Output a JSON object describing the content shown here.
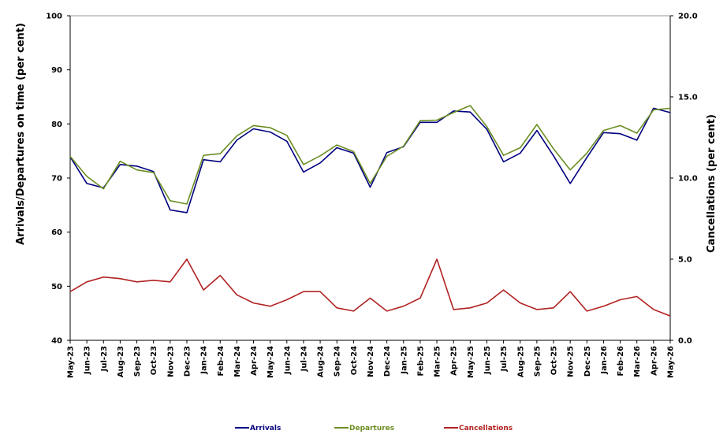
{
  "chart_data": {
    "type": "line",
    "categories": [
      "May-23",
      "Jun-23",
      "Jul-23",
      "Aug-23",
      "Sep-23",
      "Oct-23",
      "Nov-23",
      "Dec-23",
      "Jan-24",
      "Feb-24",
      "Mar-24",
      "Apr-24",
      "May-24",
      "Jun-24",
      "Jul-24",
      "Aug-24",
      "Sep-24",
      "Oct-24",
      "Nov-24",
      "Dec-24",
      "Jan-25",
      "Feb-25",
      "Mar-25",
      "Apr-25",
      "May-25",
      "Jun-25",
      "Jul-25",
      "Aug-25",
      "Sep-25",
      "Oct-25",
      "Nov-25",
      "Dec-25",
      "Jan-26",
      "Feb-26",
      "Mar-26",
      "Apr-26",
      "May-26"
    ],
    "ylabel_left": "Arrivals/Departures on time (per cent)",
    "ylabel_right": "Cancellations (per cent)",
    "ylim_left": [
      40,
      100
    ],
    "ylim_right": [
      0,
      20
    ],
    "yticks_left": [
      "40",
      "50",
      "60",
      "70",
      "80",
      "90",
      "100"
    ],
    "yticks_right": [
      "0.0",
      "5.0",
      "10.0",
      "15.0",
      "20.0"
    ],
    "gridlines": "top only",
    "legend_position": "bottom",
    "series": [
      {
        "name": "Arrivals",
        "axis": "left",
        "color": "#000080",
        "values": [
          73.9,
          69.0,
          68.2,
          72.5,
          72.2,
          71.2,
          64.1,
          63.6,
          73.4,
          73.0,
          77.0,
          79.1,
          78.5,
          76.8,
          71.1,
          72.8,
          75.6,
          74.6,
          68.3,
          74.7,
          75.8,
          80.3,
          80.3,
          82.4,
          82.2,
          79.0,
          73.0,
          74.6,
          78.8,
          74.1,
          69.0,
          73.8,
          78.4,
          78.2,
          77.0,
          82.9,
          82.1
        ]
      },
      {
        "name": "Departures",
        "axis": "left",
        "color": "#6B8E23",
        "values": [
          74.0,
          70.3,
          68.0,
          73.1,
          71.5,
          71.0,
          65.8,
          65.2,
          74.2,
          74.5,
          77.8,
          79.7,
          79.3,
          77.9,
          72.5,
          74.1,
          76.1,
          74.9,
          69.0,
          74.0,
          75.9,
          80.6,
          80.7,
          82.1,
          83.4,
          79.5,
          74.2,
          75.6,
          79.9,
          75.4,
          71.5,
          74.6,
          78.8,
          79.7,
          78.3,
          82.6,
          82.9
        ]
      },
      {
        "name": "Cancellations",
        "axis": "right",
        "color": "#B22222",
        "values": [
          3.0,
          3.6,
          3.9,
          3.8,
          3.6,
          3.7,
          3.6,
          5.0,
          3.1,
          4.0,
          2.8,
          2.3,
          2.1,
          2.5,
          3.0,
          3.0,
          2.0,
          1.8,
          2.6,
          1.8,
          2.1,
          2.6,
          5.0,
          1.9,
          2.0,
          2.3,
          3.1,
          2.3,
          1.9,
          2.0,
          3.0,
          1.8,
          2.1,
          2.5,
          2.7,
          1.9,
          1.5
        ]
      }
    ]
  }
}
